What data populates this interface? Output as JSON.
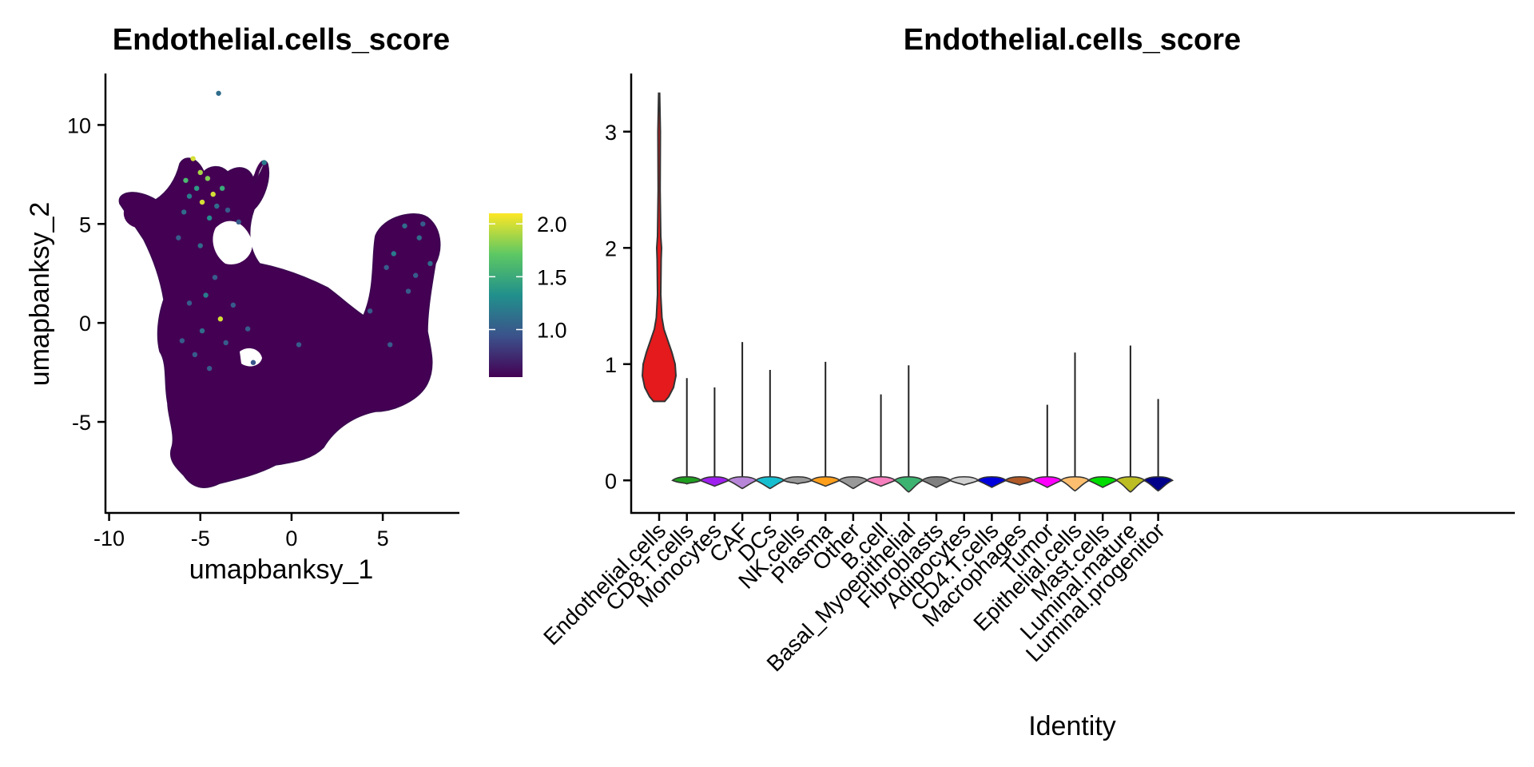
{
  "chart_data": [
    {
      "type": "scatter",
      "title": "Endothelial.cells_score",
      "xlabel": "umapbanksy_1",
      "ylabel": "umapbanksy_2",
      "xlim": [
        -10.2,
        9.2
      ],
      "ylim": [
        -9.6,
        12.6
      ],
      "xticks": [
        -10,
        -5,
        0,
        5
      ],
      "xtick_labels": [
        "-10",
        "-5",
        "0",
        "5"
      ],
      "yticks": [
        -5,
        0,
        5,
        10
      ],
      "yticks_labels": [
        "-5",
        "0",
        "5",
        "10"
      ],
      "colorbar": {
        "ticks": [
          1.0,
          1.5,
          2.0
        ],
        "tick_labels": [
          "1.0",
          "1.5",
          "2.0"
        ],
        "range": [
          0.55,
          2.1
        ],
        "colors": [
          "#440154",
          "#3b528b",
          "#21908c",
          "#5dc863",
          "#fde725"
        ]
      },
      "points": [
        {
          "x": -4.0,
          "y": 11.6,
          "v": 1.1
        },
        {
          "x": -5.4,
          "y": 8.3,
          "v": 2.0
        },
        {
          "x": -5.0,
          "y": 7.6,
          "v": 1.9
        },
        {
          "x": -4.6,
          "y": 7.3,
          "v": 1.8
        },
        {
          "x": -5.8,
          "y": 7.2,
          "v": 1.6
        },
        {
          "x": -4.3,
          "y": 6.5,
          "v": 2.0
        },
        {
          "x": -5.2,
          "y": 6.8,
          "v": 1.4
        },
        {
          "x": -4.9,
          "y": 6.1,
          "v": 2.0
        },
        {
          "x": -5.6,
          "y": 6.4,
          "v": 1.2
        },
        {
          "x": -3.8,
          "y": 6.8,
          "v": 1.5
        },
        {
          "x": -4.1,
          "y": 5.9,
          "v": 1.1
        },
        {
          "x": -4.5,
          "y": 5.3,
          "v": 1.3
        },
        {
          "x": -3.5,
          "y": 5.7,
          "v": 1.0
        },
        {
          "x": -5.9,
          "y": 5.6,
          "v": 1.1
        },
        {
          "x": -1.5,
          "y": 8.1,
          "v": 1.2
        },
        {
          "x": -2.9,
          "y": 5.1,
          "v": 1.0
        },
        {
          "x": -6.2,
          "y": 4.3,
          "v": 1.0
        },
        {
          "x": -5.0,
          "y": 3.9,
          "v": 1.1
        },
        {
          "x": -4.2,
          "y": 2.3,
          "v": 1.0
        },
        {
          "x": -3.9,
          "y": 0.2,
          "v": 2.0
        },
        {
          "x": -4.9,
          "y": -0.4,
          "v": 1.1
        },
        {
          "x": -5.3,
          "y": -1.6,
          "v": 1.0
        },
        {
          "x": -4.5,
          "y": -2.3,
          "v": 1.0
        },
        {
          "x": -6.0,
          "y": -0.9,
          "v": 1.0
        },
        {
          "x": -3.2,
          "y": 0.9,
          "v": 1.0
        },
        {
          "x": -4.7,
          "y": 1.4,
          "v": 1.2
        },
        {
          "x": -5.6,
          "y": 1.0,
          "v": 1.0
        },
        {
          "x": -3.6,
          "y": -1.0,
          "v": 1.0
        },
        {
          "x": -2.4,
          "y": -0.3,
          "v": 1.0
        },
        {
          "x": -2.1,
          "y": -2.0,
          "v": 0.95
        },
        {
          "x": 0.4,
          "y": -1.1,
          "v": 1.0
        },
        {
          "x": 6.2,
          "y": 4.9,
          "v": 1.1
        },
        {
          "x": 7.0,
          "y": 4.3,
          "v": 1.1
        },
        {
          "x": 5.6,
          "y": 3.5,
          "v": 1.2
        },
        {
          "x": 7.6,
          "y": 3.0,
          "v": 1.1
        },
        {
          "x": 6.8,
          "y": 2.4,
          "v": 1.0
        },
        {
          "x": 5.2,
          "y": 2.8,
          "v": 1.0
        },
        {
          "x": 7.2,
          "y": 5.0,
          "v": 1.0
        },
        {
          "x": 6.4,
          "y": 1.6,
          "v": 1.0
        },
        {
          "x": 4.3,
          "y": 0.6,
          "v": 1.0
        },
        {
          "x": 5.4,
          "y": -1.1,
          "v": 1.0
        }
      ]
    },
    {
      "type": "violin",
      "title": "Endothelial.cells_score",
      "xlabel": "Identity",
      "ylabel": "",
      "ylim": [
        -0.28,
        3.5
      ],
      "yticks": [
        0,
        1,
        2,
        3
      ],
      "ytick_labels": [
        "0",
        "1",
        "2",
        "3"
      ],
      "categories": [
        "Endothelial.cells",
        "CD8.T.cells",
        "Monocytes",
        "CAF",
        "DCs",
        "NK.cells",
        "Plasma",
        "Other",
        "B.cell",
        "Basal_Myoepithelial",
        "Fibroblasts",
        "Adipocytes",
        "CD4.T.cells",
        "Macrophages",
        "Tumor",
        "Epithelial.cells",
        "Mast.cells",
        "Luminal.mature",
        "Luminal.progenitor"
      ],
      "colors": [
        "#e41a1c",
        "#1f9e1f",
        "#a020f0",
        "#b886d8",
        "#17becf",
        "#9a9a9a",
        "#ff9f1c",
        "#999999",
        "#f780bf",
        "#3cb371",
        "#808080",
        "#d0d0d0",
        "#0000dd",
        "#b05a28",
        "#ff00ff",
        "#fdbf6f",
        "#00dd00",
        "#bcbd22",
        "#00008b"
      ],
      "max": [
        3.33,
        0.88,
        0.8,
        1.19,
        0.95,
        0.0,
        1.02,
        0.0,
        0.74,
        0.99,
        0.0,
        0.0,
        0.0,
        0.0,
        0.65,
        1.1,
        0.0,
        1.16,
        0.7
      ],
      "min": [
        0.68,
        -0.03,
        -0.05,
        -0.07,
        -0.07,
        -0.03,
        -0.05,
        -0.07,
        -0.05,
        -0.1,
        -0.06,
        -0.04,
        -0.06,
        -0.04,
        -0.06,
        -0.09,
        -0.06,
        -0.1,
        -0.09
      ]
    }
  ]
}
